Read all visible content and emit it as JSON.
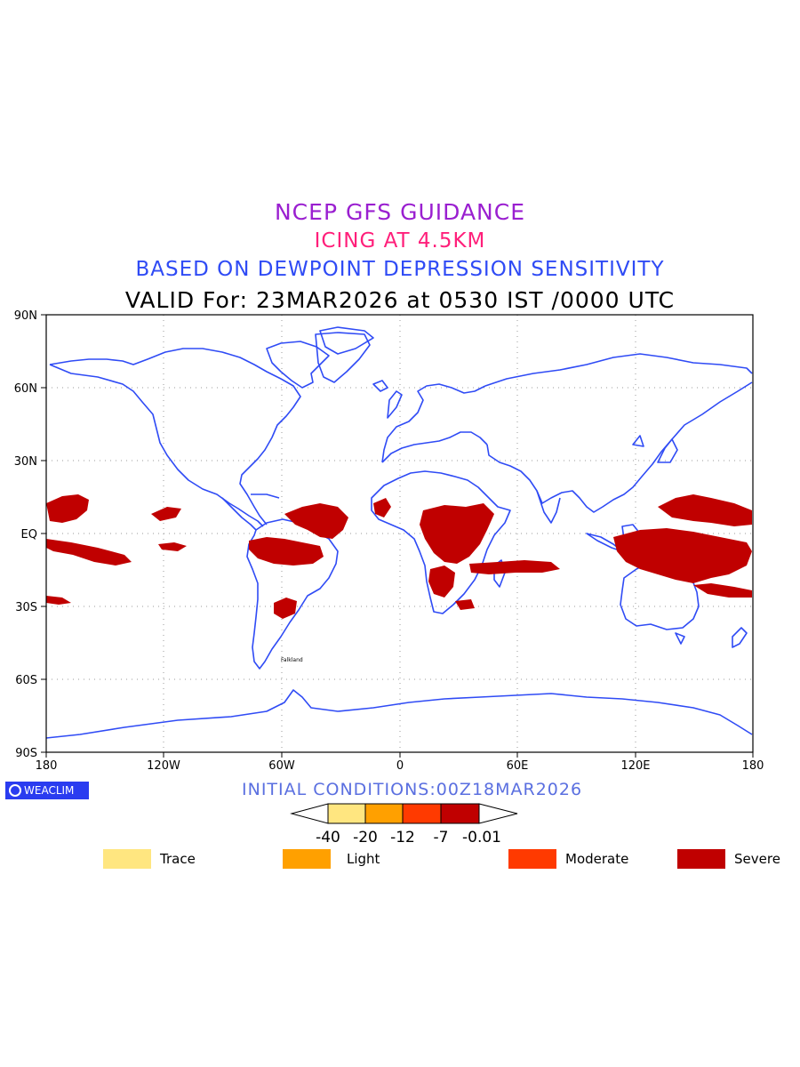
{
  "titles": {
    "line1": "NCEP GFS GUIDANCE",
    "line2": "ICING AT 4.5KM",
    "line3": "BASED ON DEWPOINT DEPRESSION SENSITIVITY",
    "line4": "VALID For: 23MAR2026 at 0530 IST /0000 UTC"
  },
  "map": {
    "lat_labels": [
      "90N",
      "60N",
      "30N",
      "EQ",
      "30S",
      "60S",
      "90S"
    ],
    "lon_labels": [
      "180",
      "120W",
      "60W",
      "0",
      "60E",
      "120E",
      "180"
    ],
    "place_label": "Falkland",
    "colors": {
      "coastline": "#2f4bf5",
      "severe": "#c00000"
    }
  },
  "logo": {
    "text": "WEACLIM"
  },
  "initial_conditions": "INITIAL CONDITIONS:00Z18MAR2026",
  "colorbar": {
    "ticks": [
      "-40",
      "-20",
      "-12",
      "-7",
      "-0.01"
    ],
    "colors": [
      "#ffe680",
      "#ffa000",
      "#ff3a00",
      "#c00000"
    ]
  },
  "legend": [
    {
      "label": "Trace",
      "color": "#ffe680"
    },
    {
      "label": "Light",
      "color": "#ffa000"
    },
    {
      "label": "Moderate",
      "color": "#ff3a00"
    },
    {
      "label": "Severe",
      "color": "#c00000"
    }
  ]
}
